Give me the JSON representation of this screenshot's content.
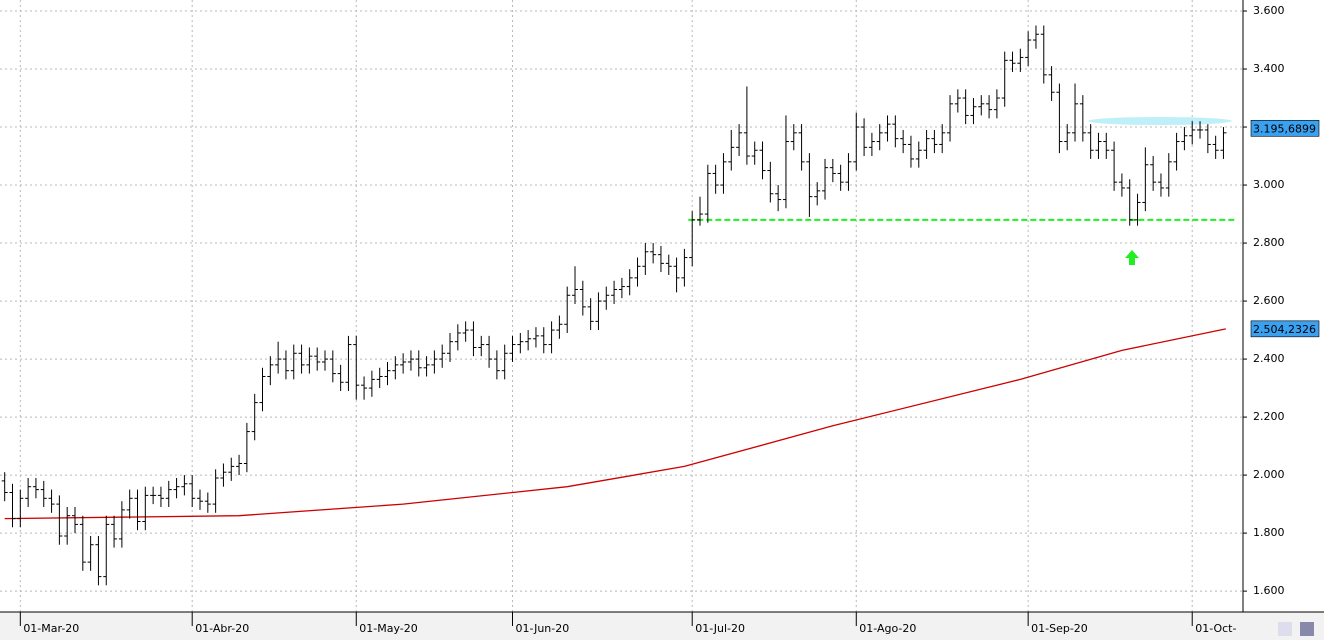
{
  "chart_data": {
    "type": "ohlc",
    "color": "#000000",
    "xlim": [
      -0.6,
      158.5
    ],
    "ylim": [
      1528,
      3638
    ],
    "yticks": [
      {
        "value": 1600,
        "label": "1.600"
      },
      {
        "value": 1800,
        "label": "1.800"
      },
      {
        "value": 2000,
        "label": "2.000"
      },
      {
        "value": 2200,
        "label": "2.200"
      },
      {
        "value": 2400,
        "label": "2.400"
      },
      {
        "value": 2600,
        "label": "2.600"
      },
      {
        "value": 2800,
        "label": "2.800"
      },
      {
        "value": 3000,
        "label": "3.000"
      },
      {
        "value": 3200,
        "label": "3.200"
      },
      {
        "value": 3400,
        "label": "3.400"
      },
      {
        "value": 3600,
        "label": "3.600"
      }
    ],
    "xticks": [
      {
        "value": 2,
        "label": "01-Mar-20"
      },
      {
        "value": 24,
        "label": "01-Abr-20"
      },
      {
        "value": 45,
        "label": "01-May-20"
      },
      {
        "value": 65,
        "label": "01-Jun-20"
      },
      {
        "value": 88,
        "label": "01-Jul-20"
      },
      {
        "value": 109,
        "label": "01-Ago-20"
      },
      {
        "value": 131,
        "label": "01-Sep-20"
      },
      {
        "value": 152,
        "label": "01-Oct-"
      }
    ],
    "grid": true,
    "open": [
      1980,
      1940,
      1850,
      1920,
      1960,
      1950,
      1920,
      1900,
      1790,
      1860,
      1830,
      1700,
      1760,
      1650,
      1830,
      1780,
      1880,
      1920,
      1840,
      1930,
      1930,
      1920,
      1950,
      1960,
      1970,
      1920,
      1910,
      1900,
      1990,
      2010,
      2030,
      2040,
      2150,
      2250,
      2340,
      2380,
      2400,
      2360,
      2420,
      2380,
      2410,
      2390,
      2400,
      2350,
      2320,
      2450,
      2310,
      2300,
      2330,
      2340,
      2360,
      2380,
      2390,
      2400,
      2370,
      2380,
      2400,
      2420,
      2460,
      2490,
      2500,
      2440,
      2450,
      2400,
      2360,
      2420,
      2450,
      2460,
      2470,
      2480,
      2450,
      2500,
      2520,
      2620,
      2640,
      2580,
      2530,
      2600,
      2620,
      2640,
      2650,
      2680,
      2720,
      2770,
      2760,
      2730,
      2720,
      2680,
      2750,
      2880,
      2900,
      3040,
      3000,
      3080,
      3130,
      3180,
      3100,
      3120,
      3050,
      2970,
      2950,
      3150,
      3180,
      3080,
      2960,
      2980,
      3060,
      3040,
      3010,
      3080,
      3200,
      3130,
      3150,
      3180,
      3210,
      3160,
      3140,
      3090,
      3120,
      3160,
      3140,
      3180,
      3280,
      3300,
      3240,
      3270,
      3280,
      3260,
      3300,
      3430,
      3420,
      3440,
      3500,
      3520,
      3380,
      3320,
      3150,
      3180,
      3280,
      3180,
      3120,
      3150,
      3120,
      3010,
      2990,
      2880,
      2940,
      3070,
      3010,
      2990,
      3080,
      3150,
      3170,
      3190,
      3190,
      3140,
      3120
    ],
    "high": [
      2010,
      1970,
      1950,
      1990,
      1990,
      1980,
      1950,
      1930,
      1890,
      1890,
      1860,
      1790,
      1790,
      1860,
      1860,
      1910,
      1950,
      1950,
      1960,
      1960,
      1960,
      1980,
      1990,
      2000,
      2000,
      1950,
      1940,
      2020,
      2040,
      2060,
      2070,
      2180,
      2280,
      2370,
      2410,
      2460,
      2430,
      2450,
      2450,
      2440,
      2440,
      2430,
      2430,
      2380,
      2480,
      2480,
      2340,
      2360,
      2370,
      2390,
      2410,
      2420,
      2430,
      2430,
      2410,
      2430,
      2450,
      2490,
      2520,
      2530,
      2530,
      2480,
      2480,
      2430,
      2450,
      2480,
      2490,
      2500,
      2510,
      2510,
      2530,
      2550,
      2650,
      2720,
      2670,
      2610,
      2630,
      2650,
      2670,
      2680,
      2710,
      2750,
      2800,
      2800,
      2790,
      2760,
      2750,
      2780,
      2910,
      2960,
      3070,
      3070,
      3110,
      3190,
      3210,
      3340,
      3150,
      3150,
      3080,
      3000,
      3240,
      3210,
      3210,
      3110,
      3010,
      3090,
      3090,
      3070,
      3110,
      3250,
      3230,
      3180,
      3210,
      3240,
      3240,
      3190,
      3170,
      3150,
      3190,
      3190,
      3210,
      3310,
      3330,
      3330,
      3300,
      3310,
      3310,
      3330,
      3460,
      3460,
      3470,
      3530,
      3550,
      3550,
      3410,
      3350,
      3210,
      3350,
      3310,
      3210,
      3180,
      3180,
      3150,
      3040,
      3020,
      2970,
      3130,
      3100,
      3040,
      3110,
      3180,
      3200,
      3220,
      3220,
      3210,
      3170,
      3200
    ],
    "low": [
      1910,
      1820,
      1820,
      1890,
      1920,
      1890,
      1870,
      1760,
      1760,
      1800,
      1670,
      1670,
      1620,
      1620,
      1750,
      1750,
      1850,
      1810,
      1810,
      1900,
      1890,
      1890,
      1920,
      1930,
      1890,
      1880,
      1870,
      1870,
      1960,
      1980,
      2000,
      2010,
      2120,
      2220,
      2310,
      2350,
      2330,
      2330,
      2350,
      2350,
      2360,
      2360,
      2320,
      2290,
      2290,
      2260,
      2260,
      2270,
      2300,
      2310,
      2330,
      2350,
      2360,
      2340,
      2340,
      2350,
      2370,
      2390,
      2430,
      2460,
      2410,
      2410,
      2370,
      2330,
      2330,
      2390,
      2420,
      2430,
      2440,
      2420,
      2420,
      2470,
      2490,
      2590,
      2550,
      2500,
      2500,
      2570,
      2590,
      2610,
      2620,
      2650,
      2690,
      2730,
      2700,
      2690,
      2630,
      2650,
      2720,
      2860,
      2870,
      2970,
      2970,
      3050,
      3100,
      3070,
      3070,
      3020,
      2940,
      2910,
      2920,
      3120,
      3050,
      2890,
      2930,
      2950,
      3010,
      2980,
      2980,
      3050,
      3100,
      3100,
      3120,
      3150,
      3130,
      3110,
      3060,
      3060,
      3090,
      3110,
      3110,
      3150,
      3250,
      3210,
      3210,
      3240,
      3230,
      3230,
      3270,
      3390,
      3390,
      3410,
      3470,
      3350,
      3290,
      3110,
      3120,
      3150,
      3150,
      3090,
      3090,
      3090,
      2980,
      2960,
      2860,
      2860,
      2910,
      2980,
      2960,
      2960,
      3050,
      3120,
      3140,
      3160,
      3110,
      3090,
      3090
    ],
    "close": [
      1940,
      1850,
      1920,
      1960,
      1950,
      1920,
      1900,
      1790,
      1860,
      1830,
      1700,
      1760,
      1650,
      1830,
      1780,
      1880,
      1920,
      1840,
      1930,
      1930,
      1920,
      1950,
      1960,
      1970,
      1920,
      1910,
      1900,
      1990,
      2010,
      2030,
      2040,
      2150,
      2250,
      2340,
      2380,
      2400,
      2360,
      2420,
      2380,
      2410,
      2390,
      2400,
      2350,
      2320,
      2450,
      2310,
      2300,
      2330,
      2340,
      2360,
      2380,
      2390,
      2400,
      2370,
      2380,
      2400,
      2420,
      2460,
      2490,
      2500,
      2440,
      2450,
      2400,
      2360,
      2420,
      2450,
      2460,
      2470,
      2480,
      2450,
      2500,
      2520,
      2620,
      2640,
      2580,
      2530,
      2600,
      2620,
      2640,
      2650,
      2680,
      2720,
      2770,
      2760,
      2730,
      2720,
      2680,
      2750,
      2880,
      2900,
      3040,
      3000,
      3080,
      3130,
      3180,
      3100,
      3120,
      3050,
      2970,
      2950,
      3150,
      3180,
      3080,
      2960,
      2980,
      3060,
      3040,
      3010,
      3080,
      3200,
      3130,
      3150,
      3180,
      3210,
      3160,
      3140,
      3090,
      3120,
      3160,
      3140,
      3180,
      3280,
      3300,
      3240,
      3270,
      3280,
      3260,
      3300,
      3430,
      3420,
      3440,
      3500,
      3520,
      3380,
      3320,
      3150,
      3180,
      3280,
      3180,
      3120,
      3150,
      3120,
      3010,
      2990,
      2880,
      2940,
      3070,
      3010,
      2990,
      3080,
      3150,
      3170,
      3190,
      3190,
      3140,
      3120,
      3180
    ],
    "moving_average": {
      "color": "#cc0000",
      "x": [
        0,
        30,
        51,
        72,
        87,
        106,
        130,
        143,
        156.3
      ],
      "values": [
        1850,
        1860,
        1900,
        1960,
        2030,
        2170,
        2330,
        2430,
        2504
      ]
    },
    "level_line": {
      "value": 2880,
      "x": [
        87.5,
        157.5
      ],
      "color": "#22ee22"
    },
    "price_labels": [
      {
        "value": 3195.6899,
        "label": "3.195,6899"
      },
      {
        "value": 2504.2326,
        "label": "2.504,2326"
      }
    ]
  }
}
